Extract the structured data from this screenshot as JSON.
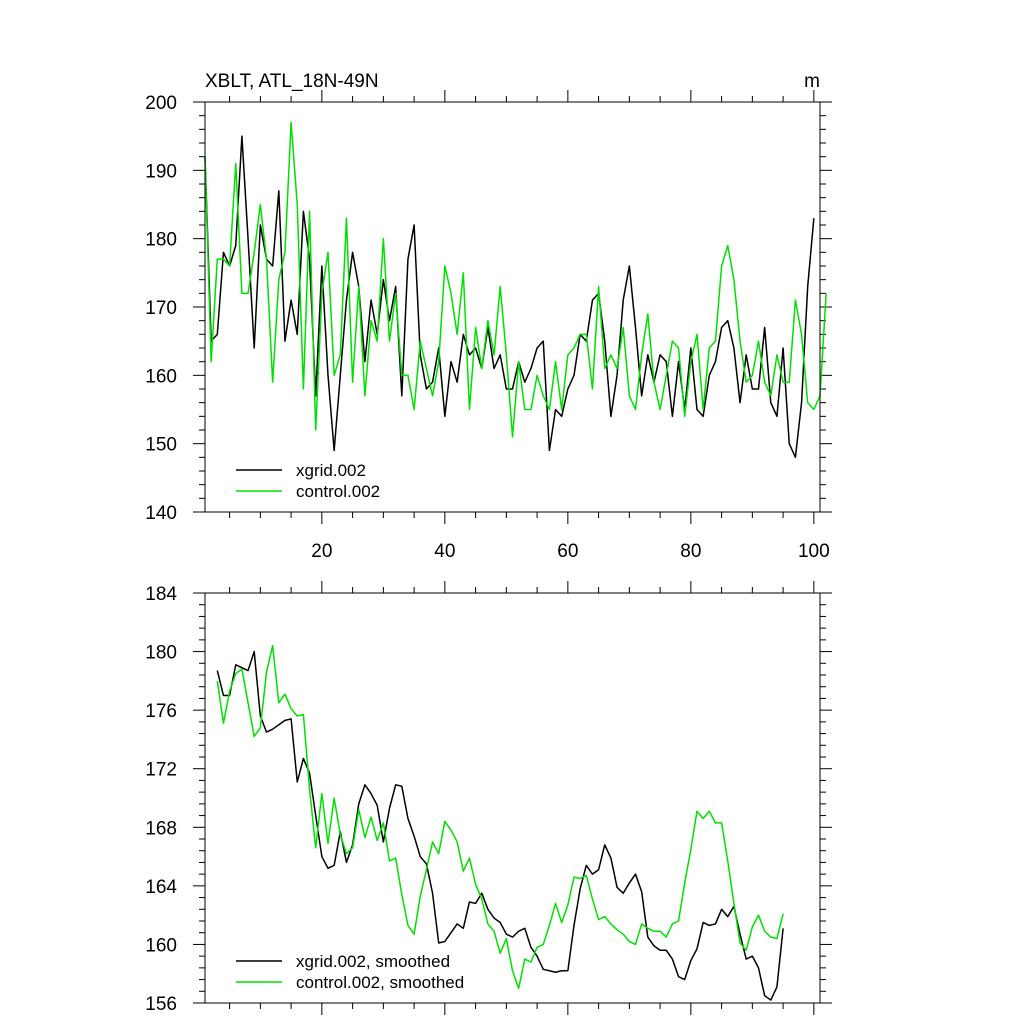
{
  "chart_data": [
    {
      "type": "line",
      "title": "XBLT, ATL_18N-49N",
      "units": "m",
      "xlim": [
        1,
        101
      ],
      "ylim": [
        140,
        200
      ],
      "xticks": [
        20,
        40,
        60,
        80,
        100
      ],
      "yticks": [
        140,
        150,
        160,
        170,
        180,
        190,
        200
      ],
      "grid": false,
      "legend_position": "bottom-left",
      "series": [
        {
          "name": "xgrid.002",
          "color": "#000000",
          "x_start": 1,
          "values": [
            192,
            165,
            166,
            178,
            176,
            179,
            195,
            180,
            164,
            182,
            177,
            176,
            187,
            165,
            171,
            166,
            184,
            177,
            157,
            176,
            160,
            149,
            160,
            171,
            178,
            173,
            162,
            171,
            166,
            174,
            168,
            173,
            157,
            177,
            182,
            163,
            158,
            159,
            164,
            154,
            162,
            159,
            166,
            163,
            164,
            161,
            167,
            161,
            163,
            158,
            158,
            162,
            159,
            161,
            164,
            165,
            149,
            155,
            154,
            158,
            160,
            166,
            165,
            171,
            172,
            165,
            154,
            160,
            171,
            176,
            167,
            157,
            163,
            159,
            163,
            162,
            154,
            162,
            155,
            164,
            155,
            154,
            160,
            162,
            167,
            168,
            164,
            156,
            163,
            158,
            158,
            167,
            156,
            154,
            164,
            150,
            148,
            156,
            173,
            183
          ]
        },
        {
          "name": "control.002",
          "color": "#00e000",
          "x_start": 1,
          "values": [
            192,
            162,
            177,
            177,
            176,
            191,
            172,
            172,
            178,
            185,
            177,
            159,
            174,
            178,
            197,
            185,
            158,
            184,
            152,
            172,
            178,
            160,
            163,
            183,
            159,
            173,
            157,
            168,
            165,
            180,
            165,
            172,
            160,
            160,
            155,
            165,
            161,
            157,
            162,
            176,
            172,
            166,
            175,
            155,
            167,
            161,
            168,
            163,
            173,
            163,
            151,
            162,
            155,
            155,
            160,
            157,
            155,
            162,
            155,
            163,
            164,
            166,
            166,
            158,
            173,
            161,
            163,
            161,
            167,
            157,
            155,
            163,
            169,
            159,
            155,
            160,
            165,
            164,
            154,
            162,
            166,
            155,
            164,
            165,
            176,
            179,
            174,
            165,
            159,
            160,
            165,
            159,
            157,
            163,
            159,
            159,
            171,
            166,
            156,
            155,
            157,
            172
          ]
        }
      ]
    },
    {
      "type": "line",
      "title": "",
      "xlim": [
        1,
        101
      ],
      "ylim": [
        156,
        184
      ],
      "xticks": [
        20,
        40,
        60,
        80,
        100
      ],
      "yticks": [
        156,
        160,
        164,
        168,
        172,
        176,
        180,
        184
      ],
      "grid": false,
      "legend_position": "bottom-left",
      "series": [
        {
          "name": "xgrid.002, smoothed",
          "color": "#000000",
          "x_start": 3,
          "values": [
            178.7,
            177.0,
            177.0,
            179.1,
            178.9,
            178.7,
            180.0,
            175.6,
            174.5,
            174.7,
            175.0,
            175.3,
            175.4,
            171.1,
            172.7,
            171.7,
            168.8,
            166.0,
            165.2,
            165.4,
            167.7,
            165.6,
            166.8,
            169.6,
            170.9,
            170.3,
            169.5,
            167.0,
            169.3,
            170.9,
            170.8,
            168.6,
            167.4,
            166.0,
            165.5,
            163.5,
            160.1,
            160.2,
            160.8,
            161.4,
            161.1,
            162.9,
            162.8,
            163.5,
            162.4,
            161.8,
            161.5,
            160.7,
            160.5,
            160.9,
            161.1,
            159.8,
            159.2,
            158.3,
            158.2,
            158.1,
            158.2,
            158.2,
            161.3,
            163.8,
            165.4,
            164.8,
            165.1,
            166.8,
            165.9,
            163.9,
            163.5,
            164.2,
            164.8,
            163.6,
            160.5,
            159.9,
            159.6,
            159.6,
            159.0,
            157.8,
            157.6,
            158.9,
            159.7,
            161.5,
            161.3,
            161.4,
            162.4,
            161.9,
            162.6,
            160.7,
            159.0,
            159.2,
            158.4,
            156.5,
            156.2,
            157.1,
            161.1
          ]
        },
        {
          "name": "control.002, smoothed",
          "color": "#00e000",
          "x_start": 3,
          "values": [
            178.0,
            175.1,
            177.3,
            178.5,
            178.8,
            176.5,
            174.2,
            174.8,
            178.6,
            180.4,
            176.5,
            177.1,
            176.1,
            175.6,
            175.7,
            170.6,
            166.6,
            170.3,
            166.9,
            170.0,
            167.5,
            166.2,
            166.6,
            169.2,
            167.3,
            168.7,
            167.1,
            168.3,
            165.7,
            165.9,
            163.4,
            161.3,
            160.7,
            163.3,
            165.1,
            167.0,
            166.2,
            168.4,
            167.8,
            167.0,
            165.0,
            165.9,
            164.1,
            163.1,
            161.4,
            160.9,
            159.4,
            160.4,
            158.2,
            157.0,
            159.0,
            158.8,
            159.8,
            160.0,
            161.3,
            162.8,
            161.5,
            162.7,
            164.6,
            164.5,
            164.7,
            163.1,
            161.7,
            161.9,
            161.4,
            161.0,
            160.7,
            160.2,
            160.0,
            161.4,
            161.1,
            160.9,
            160.9,
            160.5,
            161.4,
            161.6,
            164.2,
            166.5,
            169.1,
            168.6,
            169.1,
            168.3,
            168.3,
            165.7,
            162.8,
            160.1,
            159.6,
            161.2,
            162.0,
            160.9,
            160.5,
            160.4,
            162.1
          ]
        }
      ]
    }
  ]
}
